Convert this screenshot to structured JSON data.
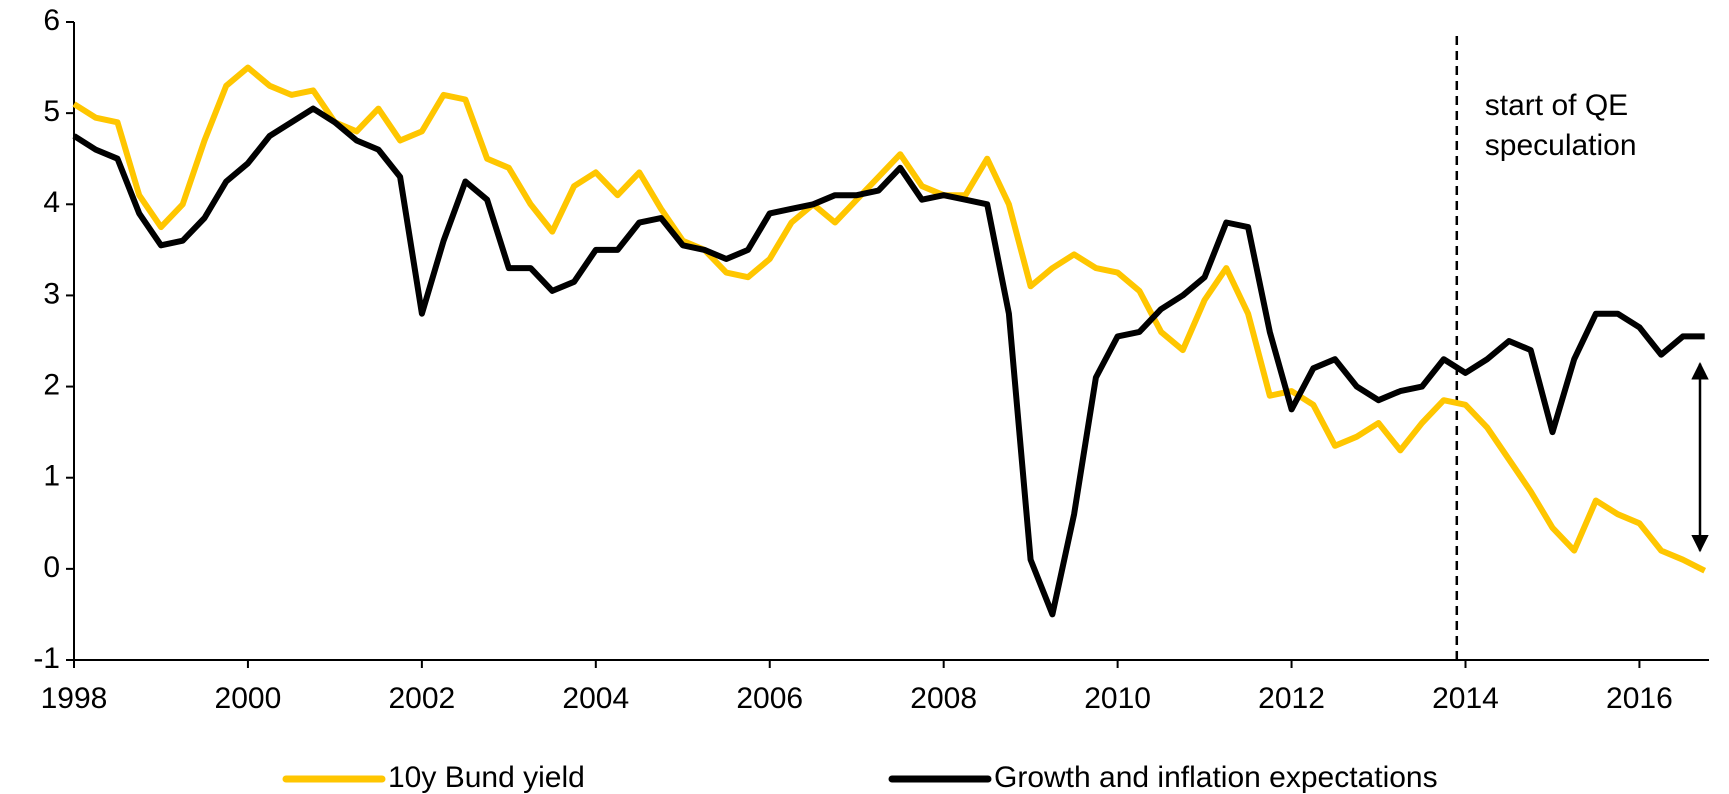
{
  "chart_data": {
    "type": "line",
    "x": [
      1998.0,
      1998.25,
      1998.5,
      1998.75,
      1999.0,
      1999.25,
      1999.5,
      1999.75,
      2000.0,
      2000.25,
      2000.5,
      2000.75,
      2001.0,
      2001.25,
      2001.5,
      2001.75,
      2002.0,
      2002.25,
      2002.5,
      2002.75,
      2003.0,
      2003.25,
      2003.5,
      2003.75,
      2004.0,
      2004.25,
      2004.5,
      2004.75,
      2005.0,
      2005.25,
      2005.5,
      2005.75,
      2006.0,
      2006.25,
      2006.5,
      2006.75,
      2007.0,
      2007.25,
      2007.5,
      2007.75,
      2008.0,
      2008.25,
      2008.5,
      2008.75,
      2009.0,
      2009.25,
      2009.5,
      2009.75,
      2010.0,
      2010.25,
      2010.5,
      2010.75,
      2011.0,
      2011.25,
      2011.5,
      2011.75,
      2012.0,
      2012.25,
      2012.5,
      2012.75,
      2013.0,
      2013.25,
      2013.5,
      2013.75,
      2014.0,
      2014.25,
      2014.5,
      2014.75,
      2015.0,
      2015.25,
      2015.5,
      2015.75,
      2016.0,
      2016.25,
      2016.5,
      2016.75
    ],
    "series": [
      {
        "name": "10y Bund yield",
        "color": "#ffc600",
        "values": [
          5.1,
          4.95,
          4.9,
          4.1,
          3.75,
          4.0,
          4.7,
          5.3,
          5.5,
          5.3,
          5.2,
          5.25,
          4.9,
          4.8,
          5.05,
          4.7,
          4.8,
          5.2,
          5.15,
          4.5,
          4.4,
          4.0,
          3.7,
          4.2,
          4.35,
          4.1,
          4.35,
          3.95,
          3.6,
          3.5,
          3.25,
          3.2,
          3.4,
          3.8,
          4.0,
          3.8,
          4.05,
          4.3,
          4.55,
          4.2,
          4.1,
          4.1,
          4.5,
          4.0,
          3.1,
          3.3,
          3.45,
          3.3,
          3.25,
          3.05,
          2.6,
          2.4,
          2.95,
          3.3,
          2.8,
          1.9,
          1.95,
          1.8,
          1.35,
          1.45,
          1.6,
          1.3,
          1.6,
          1.85,
          1.8,
          1.55,
          1.2,
          0.85,
          0.45,
          0.2,
          0.75,
          0.6,
          0.5,
          0.2,
          0.1,
          -0.02
        ]
      },
      {
        "name": "Growth and inflation expectations",
        "color": "#000000",
        "values": [
          4.75,
          4.6,
          4.5,
          3.9,
          3.55,
          3.6,
          3.85,
          4.25,
          4.45,
          4.75,
          4.9,
          5.05,
          4.9,
          4.7,
          4.6,
          4.3,
          2.8,
          3.6,
          4.25,
          4.05,
          3.3,
          3.3,
          3.05,
          3.15,
          3.5,
          3.5,
          3.8,
          3.85,
          3.55,
          3.5,
          3.4,
          3.5,
          3.9,
          3.95,
          4.0,
          4.1,
          4.1,
          4.15,
          4.4,
          4.05,
          4.1,
          4.05,
          4.0,
          2.8,
          0.1,
          -0.5,
          0.6,
          2.1,
          2.55,
          2.6,
          2.85,
          3.0,
          3.2,
          3.8,
          3.75,
          2.6,
          1.75,
          2.2,
          2.3,
          2.0,
          1.85,
          1.95,
          2.0,
          2.3,
          2.15,
          2.3,
          2.5,
          2.4,
          1.5,
          2.3,
          2.8,
          2.8,
          2.65,
          2.35,
          2.55,
          2.55
        ]
      }
    ],
    "xlim": [
      1998,
      2016.8
    ],
    "xticks": [
      1998,
      2000,
      2002,
      2004,
      2006,
      2008,
      2010,
      2012,
      2014,
      2016
    ],
    "ylim": [
      -1,
      6
    ],
    "yticks": [
      -1,
      0,
      1,
      2,
      3,
      4,
      5,
      6
    ],
    "annotation": {
      "x": 2013.9,
      "lines": [
        "start of QE",
        "speculation"
      ]
    },
    "legend": "bottom"
  }
}
